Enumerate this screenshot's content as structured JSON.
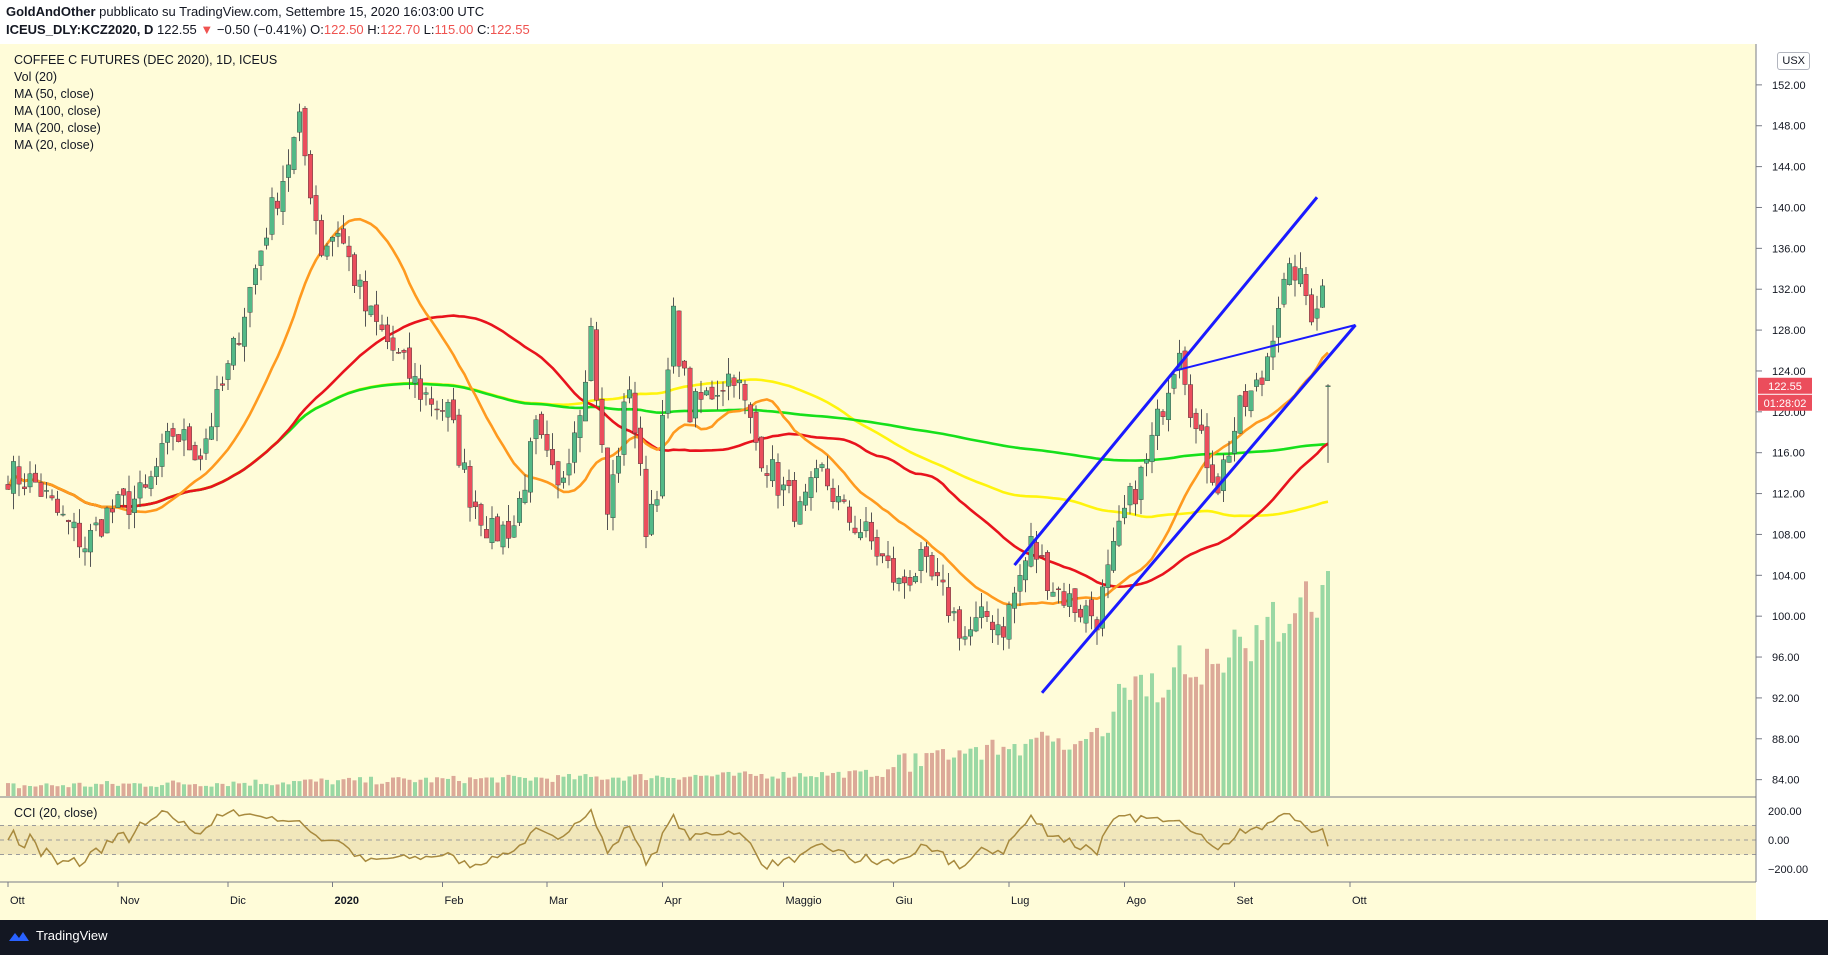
{
  "header": {
    "author": "GoldAndOther",
    "published": "pubblicato su TradingView.com, Settembre 15, 2020 16:03:00 UTC",
    "symbol": "ICEUS_DLY:KCZ2020, D",
    "last": "122.55",
    "change_arrow": "▼",
    "change": "−0.50 (−0.41%)",
    "o_label": "O:",
    "o": "122.50",
    "h_label": "H:",
    "h": "122.70",
    "l_label": "L:",
    "l": "115.00",
    "c_label": "C:",
    "c": "122.55"
  },
  "legend": {
    "title": "COFFEE C FUTURES (DEC 2020), 1D, ICEUS",
    "vol": "Vol (20)",
    "ma50": "MA (50, close)",
    "ma100": "MA (100, close)",
    "ma200": "MA (200, close)",
    "ma20": "MA (20, close)"
  },
  "cci_label": "CCI (20, close)",
  "currency_button": "USX",
  "price_badge": "122.55",
  "countdown_badge": "01:28:02",
  "brand": "TradingView",
  "colors": {
    "bg": "#fffcd9",
    "up": "#53b987",
    "down": "#eb4d5c",
    "ma20": "#ff9a1f",
    "ma50": "#e8131d",
    "ma100": "#fff40d",
    "ma200": "#16e01b",
    "channel": "#1a1aff",
    "cci": "#a88a3e"
  },
  "chart_data": {
    "type": "candlestick",
    "y_ticks": [
      84,
      88,
      92,
      96,
      100,
      104,
      108,
      112,
      116,
      120,
      124,
      128,
      132,
      136,
      140,
      144,
      148,
      152
    ],
    "ylim": [
      82.4,
      156
    ],
    "cci_ticks": [
      "200.00",
      "0.00",
      "−200.00"
    ],
    "cci_ylim": [
      -290,
      290
    ],
    "x_labels": [
      "Ott",
      "Nov",
      "Dic",
      "2020",
      "Feb",
      "Mar",
      "Apr",
      "Maggio",
      "Giu",
      "Lug",
      "Ago",
      "Set",
      "Ott"
    ],
    "trading_days": 250,
    "month_label_days": [
      0,
      20,
      40,
      59,
      79,
      98,
      119,
      141,
      161,
      182,
      203,
      223,
      244
    ],
    "price_anchors": [
      [
        0,
        114
      ],
      [
        5,
        113
      ],
      [
        9,
        110
      ],
      [
        14,
        107
      ],
      [
        18,
        110
      ],
      [
        25,
        112
      ],
      [
        30,
        118
      ],
      [
        35,
        116
      ],
      [
        40,
        124
      ],
      [
        47,
        138
      ],
      [
        53,
        148
      ],
      [
        57,
        136
      ],
      [
        60,
        138
      ],
      [
        65,
        130
      ],
      [
        70,
        126
      ],
      [
        75,
        122
      ],
      [
        80,
        120
      ],
      [
        84,
        112
      ],
      [
        88,
        108
      ],
      [
        92,
        109
      ],
      [
        96,
        118
      ],
      [
        100,
        112
      ],
      [
        104,
        121
      ],
      [
        106,
        128
      ],
      [
        109,
        110
      ],
      [
        113,
        123
      ],
      [
        116,
        109
      ],
      [
        118,
        113
      ],
      [
        121,
        129
      ],
      [
        124,
        120
      ],
      [
        128,
        122
      ],
      [
        132,
        124
      ],
      [
        136,
        117
      ],
      [
        140,
        113
      ],
      [
        144,
        110
      ],
      [
        148,
        114
      ],
      [
        152,
        110
      ],
      [
        156,
        108
      ],
      [
        162,
        103
      ],
      [
        166,
        105
      ],
      [
        170,
        102
      ],
      [
        174,
        98
      ],
      [
        178,
        100
      ],
      [
        181,
        99
      ],
      [
        186,
        107
      ],
      [
        190,
        103
      ],
      [
        194,
        101
      ],
      [
        198,
        100
      ],
      [
        203,
        110
      ],
      [
        207,
        115
      ],
      [
        211,
        123
      ],
      [
        213,
        127
      ],
      [
        216,
        118
      ],
      [
        220,
        113
      ],
      [
        224,
        120
      ],
      [
        228,
        123
      ],
      [
        231,
        131
      ],
      [
        234,
        134
      ],
      [
        237,
        130
      ],
      [
        239,
        132
      ],
      [
        240,
        122.55
      ]
    ],
    "ma20_last": 125.8,
    "ma50_last": 116.9,
    "ma100_last": 111.2,
    "ma200_last": 116.8,
    "channel_upper": [
      [
        183,
        105
      ],
      [
        238,
        141
      ]
    ],
    "channel_upper_ext": [
      [
        212,
        124
      ],
      [
        245,
        128.5
      ]
    ],
    "channel_lower": [
      [
        188,
        92.5
      ],
      [
        245,
        128.5
      ]
    ]
  }
}
